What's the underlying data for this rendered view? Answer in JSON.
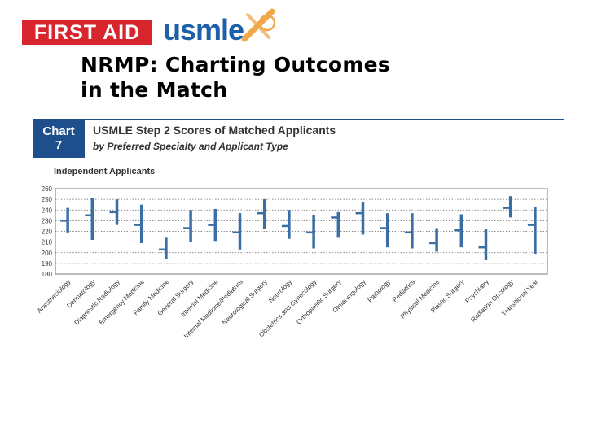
{
  "logos": {
    "first_aid": "FIRST AID",
    "usmle": "usmle",
    "colors": {
      "first_aid_bg": "#d7262e",
      "usmle_text": "#1d5fa8",
      "mark": "#f0a84a"
    }
  },
  "slide": {
    "title_line1": "NRMP: Charting Outcomes",
    "title_line2": "in the Match"
  },
  "chart_header": {
    "label": "Chart",
    "number": "7",
    "title": "USMLE Step 2 Scores of Matched Applicants",
    "subtitle": "by Preferred Specialty and Applicant Type",
    "panel": "Independent Applicants",
    "accent_color": "#1f4e8c"
  },
  "chart_data": {
    "type": "box",
    "ylim": [
      180,
      260
    ],
    "yticks": [
      180,
      190,
      200,
      210,
      220,
      230,
      240,
      250,
      260
    ],
    "grid": "dotted-horizontal",
    "color": "#3a6ea5",
    "categories": [
      "Anesthesiology",
      "Dermatology",
      "Diagnostic Radiology",
      "Emergency Medicine",
      "Family Medicine",
      "General Surgery",
      "Internal Medicine",
      "Internal Medicine/Pediatrics",
      "Neurological Surgery",
      "Neurology",
      "Obstetrics and Gynecology",
      "Orthopaedic Surgery",
      "Otolaryngology",
      "Pathology",
      "Pediatrics",
      "Physical Medicine",
      "Plastic Surgery",
      "Psychiatry",
      "Radiation Oncology",
      "Transitional Year"
    ],
    "low": [
      219,
      212,
      226,
      209,
      194,
      210,
      211,
      203,
      222,
      213,
      204,
      214,
      217,
      205,
      204,
      201,
      205,
      193,
      233,
      199
    ],
    "high": [
      242,
      251,
      250,
      245,
      214,
      240,
      241,
      237,
      250,
      240,
      235,
      238,
      247,
      237,
      237,
      223,
      236,
      222,
      253,
      243
    ],
    "median": [
      230,
      235,
      238,
      226,
      203,
      223,
      226,
      219,
      237,
      225,
      219,
      233,
      237,
      223,
      219,
      209,
      221,
      205,
      242,
      226
    ]
  }
}
